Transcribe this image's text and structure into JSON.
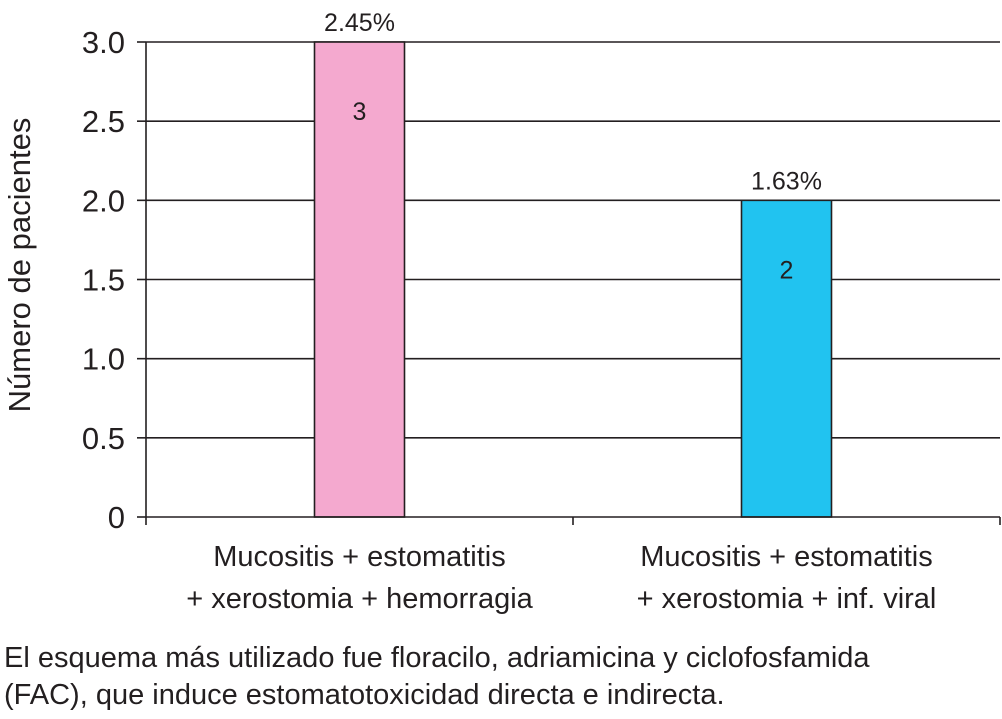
{
  "chart_data": {
    "type": "bar",
    "categories": [
      [
        "Mucositis + estomatitis",
        "+ xerostomia + hemorragia"
      ],
      [
        "Mucositis + estomatitis",
        "+ xerostomia + inf. viral"
      ]
    ],
    "values": [
      3,
      2
    ],
    "bar_value_labels": [
      "3",
      "2"
    ],
    "bar_top_labels": [
      "2.45%",
      "1.63%"
    ],
    "colors": [
      "#f4a9cf",
      "#21c3f0"
    ],
    "ylabel": "Número de pacientes",
    "ylim": [
      0,
      3.0
    ],
    "yticks": [
      "0",
      "0.5",
      "1.0",
      "1.5",
      "2.0",
      "2.5",
      "3.0"
    ],
    "grid": true
  },
  "caption": {
    "line1": "El esquema más utilizado fue floracilo, adriamicina y ciclofosfamida",
    "line2": "(FAC), que induce estomatotoxicidad directa e indirecta."
  }
}
